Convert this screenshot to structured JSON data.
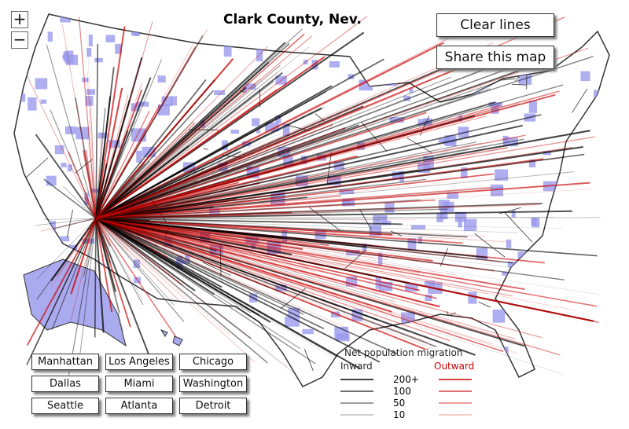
{
  "header": {
    "title": "Clark County, Nev."
  },
  "zoom": {
    "in": "+",
    "out": "−"
  },
  "actions": [
    "Clear lines",
    "Share this map"
  ],
  "cities": [
    [
      "Manhattan",
      "Los Angeles",
      "Chicago"
    ],
    [
      "Dallas",
      "Miami",
      "Washington"
    ],
    [
      "Seattle",
      "Atlanta",
      "Detroit"
    ]
  ],
  "legend": {
    "title": "Net population migration",
    "inward": "Inward",
    "outward": "Outward",
    "levels": [
      "200+",
      100,
      50,
      10
    ]
  }
}
